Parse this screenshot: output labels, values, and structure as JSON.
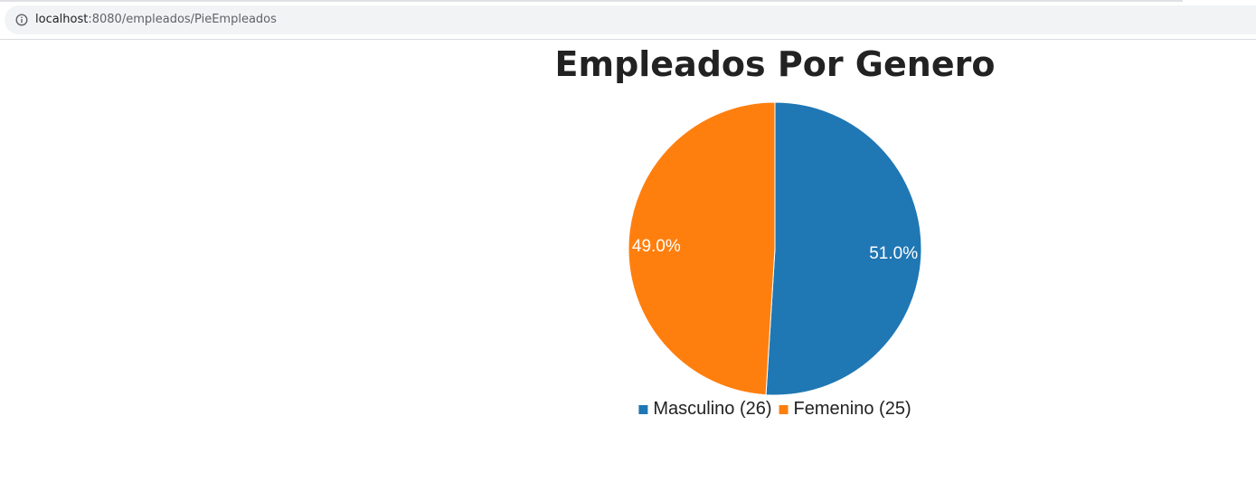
{
  "browser": {
    "url_host": "localhost",
    "url_path": ":8080/empleados/PieEmpleados",
    "info_icon": "info-icon"
  },
  "page": {
    "title": "Empleados Por Genero"
  },
  "chart_data": {
    "type": "pie",
    "title": "Empleados Por Genero",
    "legend_position": "bottom",
    "slices": [
      {
        "label": "Masculino",
        "value": 26,
        "percent_label": "51.0%",
        "legend_label": "Masculino (26)",
        "color": "#1f77b4"
      },
      {
        "label": "Femenino",
        "value": 25,
        "percent_label": "49.0%",
        "legend_label": "Femenino (25)",
        "color": "#ff7f0e"
      }
    ]
  }
}
